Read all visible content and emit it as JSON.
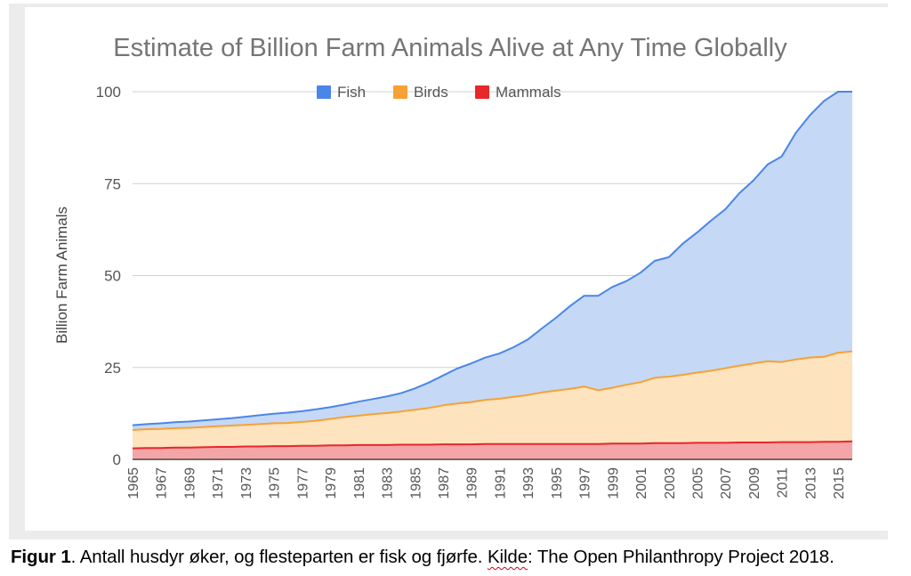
{
  "chart_data": {
    "type": "area",
    "stacked": true,
    "title": "Estimate of Billion Farm Animals Alive at Any Time Globally",
    "ylabel": "Billion Farm Animals",
    "xlabel": "",
    "ylim": [
      0,
      100
    ],
    "yticks": [
      "0",
      "25",
      "50",
      "75",
      "100"
    ],
    "xticks": [
      "1965",
      "1967",
      "1969",
      "1971",
      "1973",
      "1975",
      "1977",
      "1979",
      "1981",
      "1983",
      "1985",
      "1987",
      "1989",
      "1991",
      "1993",
      "1995",
      "1997",
      "1999",
      "2001",
      "2003",
      "2005",
      "2007",
      "2009",
      "2011",
      "2013",
      "2015"
    ],
    "legend_position": "top",
    "grid": true,
    "x": [
      1965,
      1966,
      1967,
      1968,
      1969,
      1970,
      1971,
      1972,
      1973,
      1974,
      1975,
      1976,
      1977,
      1978,
      1979,
      1980,
      1981,
      1982,
      1983,
      1984,
      1985,
      1986,
      1987,
      1988,
      1989,
      1990,
      1991,
      1992,
      1993,
      1994,
      1995,
      1996,
      1997,
      1998,
      1999,
      2000,
      2001,
      2002,
      2003,
      2004,
      2005,
      2006,
      2007,
      2008,
      2009,
      2010,
      2011,
      2012,
      2013,
      2014,
      2015,
      2016
    ],
    "series": [
      {
        "name": "Mammals",
        "color": "#e8272b",
        "fill": "#f4a5a7",
        "values": [
          3.0,
          3.1,
          3.1,
          3.2,
          3.2,
          3.3,
          3.4,
          3.4,
          3.5,
          3.5,
          3.6,
          3.6,
          3.7,
          3.7,
          3.8,
          3.8,
          3.9,
          3.9,
          3.9,
          4.0,
          4.0,
          4.0,
          4.1,
          4.1,
          4.1,
          4.2,
          4.2,
          4.2,
          4.2,
          4.2,
          4.2,
          4.2,
          4.2,
          4.2,
          4.3,
          4.3,
          4.3,
          4.4,
          4.4,
          4.4,
          4.5,
          4.5,
          4.5,
          4.6,
          4.6,
          4.6,
          4.7,
          4.7,
          4.7,
          4.8,
          4.8,
          4.9
        ]
      },
      {
        "name": "Birds",
        "color": "#f7a136",
        "fill": "#fde3be",
        "values": [
          5.0,
          5.1,
          5.2,
          5.3,
          5.4,
          5.5,
          5.6,
          5.8,
          5.9,
          6.1,
          6.2,
          6.3,
          6.5,
          6.8,
          7.2,
          7.7,
          8.0,
          8.4,
          8.7,
          9.0,
          9.5,
          10.0,
          10.6,
          11.1,
          11.5,
          12.0,
          12.3,
          12.8,
          13.3,
          14.0,
          14.5,
          15.0,
          15.6,
          14.6,
          15.2,
          16.0,
          16.7,
          17.8,
          18.1,
          18.6,
          19.1,
          19.6,
          20.3,
          20.9,
          21.5,
          22.1,
          21.8,
          22.5,
          23.0,
          23.1,
          24.2,
          24.5
        ]
      },
      {
        "name": "Fish",
        "color": "#4a86e8",
        "fill": "#c5d9f6",
        "values": [
          1.3,
          1.4,
          1.5,
          1.6,
          1.7,
          1.8,
          1.9,
          2.0,
          2.2,
          2.4,
          2.6,
          2.8,
          2.9,
          3.1,
          3.2,
          3.4,
          3.8,
          4.1,
          4.5,
          5.0,
          5.8,
          6.9,
          8.1,
          9.5,
          10.5,
          11.5,
          12.3,
          13.5,
          15.1,
          17.4,
          19.8,
          22.5,
          24.7,
          25.7,
          27.4,
          28.2,
          29.8,
          31.8,
          32.5,
          35.7,
          38.1,
          40.9,
          43.2,
          46.9,
          49.8,
          53.5,
          55.9,
          61.6,
          65.9,
          69.6,
          72.4,
          70.6
        ]
      }
    ]
  },
  "caption": {
    "label": "Figur 1",
    "text_before": ". Antall husdyr øker, og flesteparten er fisk og fjørfe. ",
    "source_word": "Kilde",
    "text_after": ": The Open Philanthropy Project 2018."
  }
}
